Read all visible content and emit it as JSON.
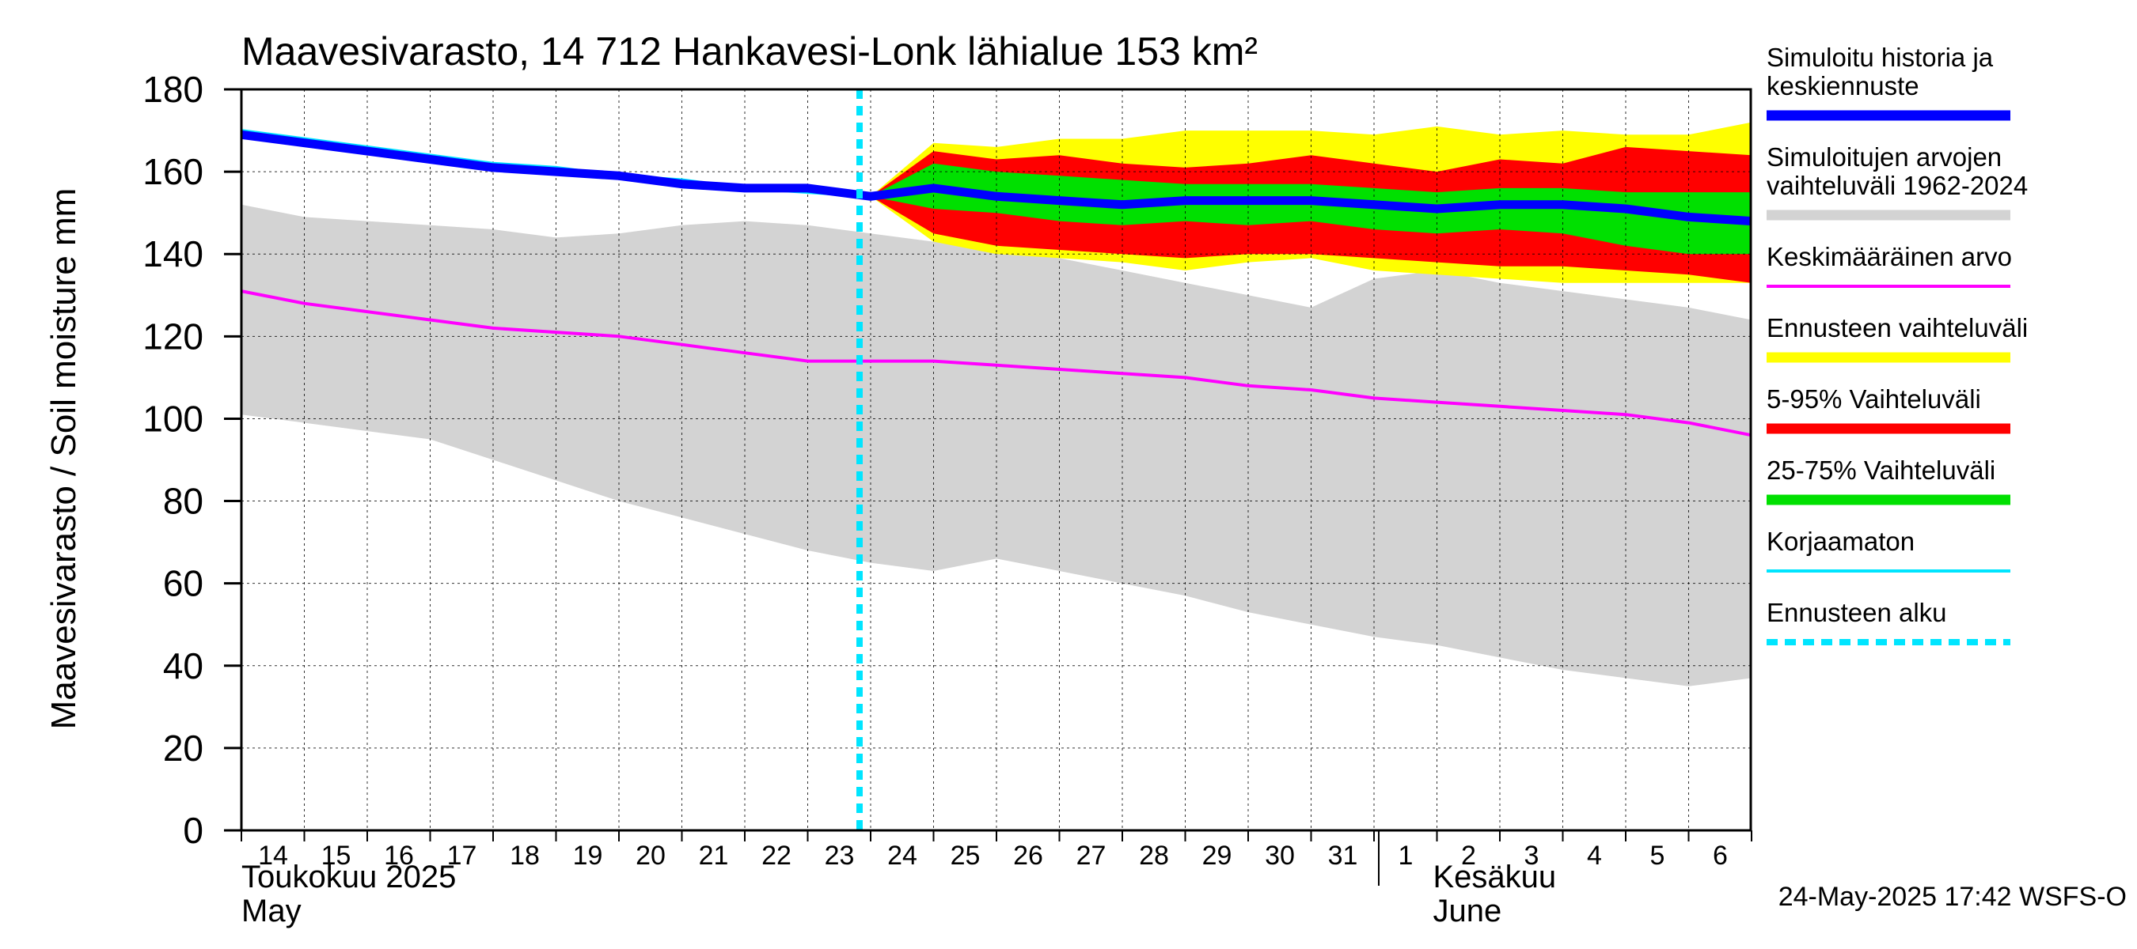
{
  "chart_data": {
    "type": "area",
    "title": "Maavesivarasto, 14 712 Hankavesi-Lonk lähialue 153 km²",
    "ylabel": "Maavesivarasto / Soil moisture   mm",
    "ylim": [
      0,
      180
    ],
    "yticks": [
      0,
      20,
      40,
      60,
      80,
      100,
      120,
      140,
      160,
      180
    ],
    "x_dates": [
      "2025-05-14",
      "2025-05-15",
      "2025-05-16",
      "2025-05-17",
      "2025-05-18",
      "2025-05-19",
      "2025-05-20",
      "2025-05-21",
      "2025-05-22",
      "2025-05-23",
      "2025-05-24",
      "2025-05-25",
      "2025-05-26",
      "2025-05-27",
      "2025-05-28",
      "2025-05-29",
      "2025-05-30",
      "2025-05-31",
      "2025-06-01",
      "2025-06-02",
      "2025-06-03",
      "2025-06-04",
      "2025-06-05",
      "2025-06-06",
      "2025-06-07"
    ],
    "x_tick_labels": [
      "14",
      "15",
      "16",
      "17",
      "18",
      "19",
      "20",
      "21",
      "22",
      "23",
      "24",
      "25",
      "26",
      "27",
      "28",
      "29",
      "30",
      "31",
      "1",
      "2",
      "3",
      "4",
      "5",
      "6"
    ],
    "month_labels": [
      {
        "line1": "Toukokuu  2025",
        "line2": "May",
        "date": "2025-05-14"
      },
      {
        "line1": "Kesäkuu",
        "line2": "June",
        "date": "2025-06-02"
      }
    ],
    "forecast_start": "2025-05-24",
    "grid": true,
    "legend_position": "right",
    "timestamp": "24-May-2025 17:42 WSFS-O",
    "series": [
      {
        "name": "Simuloitujen arvojen vaihteluväli 1962-2024",
        "kind": "band",
        "color": "#d3d3d3",
        "x": [
          "2025-05-14",
          "2025-05-15",
          "2025-05-16",
          "2025-05-17",
          "2025-05-18",
          "2025-05-19",
          "2025-05-20",
          "2025-05-21",
          "2025-05-22",
          "2025-05-23",
          "2025-05-24",
          "2025-05-25",
          "2025-05-26",
          "2025-05-27",
          "2025-05-28",
          "2025-05-29",
          "2025-05-30",
          "2025-05-31",
          "2025-06-01",
          "2025-06-02",
          "2025-06-03",
          "2025-06-04",
          "2025-06-05",
          "2025-06-06",
          "2025-06-07"
        ],
        "upper": [
          152,
          149,
          148,
          147,
          146,
          144,
          145,
          147,
          148,
          147,
          145,
          143,
          141,
          139,
          136,
          133,
          130,
          127,
          134,
          136,
          133,
          131,
          129,
          127,
          124
        ],
        "lower": [
          101,
          99,
          97,
          95,
          90,
          85,
          80,
          76,
          72,
          68,
          65,
          63,
          66,
          63,
          60,
          57,
          53,
          50,
          47,
          45,
          42,
          39,
          37,
          35,
          37
        ]
      },
      {
        "name": "Ennusteen vaihteluväli",
        "kind": "band",
        "color": "#ffff00",
        "x": [
          "2025-05-24",
          "2025-05-25",
          "2025-05-26",
          "2025-05-27",
          "2025-05-28",
          "2025-05-29",
          "2025-05-30",
          "2025-05-31",
          "2025-06-01",
          "2025-06-02",
          "2025-06-03",
          "2025-06-04",
          "2025-06-05",
          "2025-06-06",
          "2025-06-07"
        ],
        "upper": [
          154,
          167,
          166,
          168,
          168,
          170,
          170,
          170,
          169,
          171,
          169,
          170,
          169,
          169,
          172
        ],
        "lower": [
          154,
          143,
          140,
          139,
          138,
          136,
          138,
          139,
          136,
          135,
          134,
          133,
          133,
          133,
          133
        ]
      },
      {
        "name": "5-95% Vaihteluväli",
        "kind": "band",
        "color": "#ff0000",
        "x": [
          "2025-05-24",
          "2025-05-25",
          "2025-05-26",
          "2025-05-27",
          "2025-05-28",
          "2025-05-29",
          "2025-05-30",
          "2025-05-31",
          "2025-06-01",
          "2025-06-02",
          "2025-06-03",
          "2025-06-04",
          "2025-06-05",
          "2025-06-06",
          "2025-06-07"
        ],
        "upper": [
          154,
          165,
          163,
          164,
          162,
          161,
          162,
          164,
          162,
          160,
          163,
          162,
          166,
          165,
          164
        ],
        "lower": [
          154,
          145,
          142,
          141,
          140,
          139,
          140,
          140,
          139,
          138,
          137,
          137,
          136,
          135,
          133
        ]
      },
      {
        "name": "25-75% Vaihteluväli",
        "kind": "band",
        "color": "#00e000",
        "x": [
          "2025-05-24",
          "2025-05-25",
          "2025-05-26",
          "2025-05-27",
          "2025-05-28",
          "2025-05-29",
          "2025-05-30",
          "2025-05-31",
          "2025-06-01",
          "2025-06-02",
          "2025-06-03",
          "2025-06-04",
          "2025-06-05",
          "2025-06-06",
          "2025-06-07"
        ],
        "upper": [
          154,
          162,
          160,
          159,
          158,
          157,
          157,
          157,
          156,
          155,
          156,
          156,
          155,
          155,
          155
        ],
        "lower": [
          154,
          151,
          150,
          148,
          147,
          148,
          147,
          148,
          146,
          145,
          146,
          145,
          142,
          140,
          140
        ]
      },
      {
        "name": "Keskimääräinen arvo",
        "kind": "line",
        "color": "#ff00ff",
        "x": [
          "2025-05-14",
          "2025-05-15",
          "2025-05-16",
          "2025-05-17",
          "2025-05-18",
          "2025-05-19",
          "2025-05-20",
          "2025-05-21",
          "2025-05-22",
          "2025-05-23",
          "2025-05-24",
          "2025-05-25",
          "2025-05-26",
          "2025-05-27",
          "2025-05-28",
          "2025-05-29",
          "2025-05-30",
          "2025-05-31",
          "2025-06-01",
          "2025-06-02",
          "2025-06-03",
          "2025-06-04",
          "2025-06-05",
          "2025-06-06",
          "2025-06-07"
        ],
        "values": [
          131,
          128,
          126,
          124,
          122,
          121,
          120,
          118,
          116,
          114,
          114,
          114,
          113,
          112,
          111,
          110,
          108,
          107,
          105,
          104,
          103,
          102,
          101,
          99,
          96
        ]
      },
      {
        "name": "Korjaamaton",
        "kind": "line",
        "color": "#00e5ff",
        "x": [
          "2025-05-14",
          "2025-05-15",
          "2025-05-16",
          "2025-05-17",
          "2025-05-18",
          "2025-05-19",
          "2025-05-20",
          "2025-05-21",
          "2025-05-22",
          "2025-05-23",
          "2025-05-24"
        ],
        "values": [
          170,
          168,
          166,
          164,
          162,
          161,
          159,
          158,
          156,
          155,
          154
        ]
      },
      {
        "name": "Simuloitu historia ja keskiennuste",
        "kind": "line",
        "color": "#0000ff",
        "x": [
          "2025-05-14",
          "2025-05-15",
          "2025-05-16",
          "2025-05-17",
          "2025-05-18",
          "2025-05-19",
          "2025-05-20",
          "2025-05-21",
          "2025-05-22",
          "2025-05-23",
          "2025-05-24",
          "2025-05-25",
          "2025-05-26",
          "2025-05-27",
          "2025-05-28",
          "2025-05-29",
          "2025-05-30",
          "2025-05-31",
          "2025-06-01",
          "2025-06-02",
          "2025-06-03",
          "2025-06-04",
          "2025-06-05",
          "2025-06-06",
          "2025-06-07"
        ],
        "values": [
          169,
          167,
          165,
          163,
          161,
          160,
          159,
          157,
          156,
          156,
          154,
          156,
          154,
          153,
          152,
          153,
          153,
          153,
          152,
          151,
          152,
          152,
          151,
          149,
          148
        ]
      }
    ],
    "legend": [
      {
        "label_lines": [
          "Simuloitu historia ja",
          "keskiennuste"
        ],
        "color": "#0000ff",
        "style": "thick"
      },
      {
        "label_lines": [
          "Simuloitujen arvojen",
          "vaihteluväli 1962-2024"
        ],
        "color": "#d3d3d3",
        "style": "thick"
      },
      {
        "label_lines": [
          "Keskimääräinen arvo"
        ],
        "color": "#ff00ff",
        "style": "thin"
      },
      {
        "label_lines": [
          "Ennusteen vaihteluväli"
        ],
        "color": "#ffff00",
        "style": "thick"
      },
      {
        "label_lines": [
          "5-95% Vaihteluväli"
        ],
        "color": "#ff0000",
        "style": "thick"
      },
      {
        "label_lines": [
          "25-75% Vaihteluväli"
        ],
        "color": "#00e000",
        "style": "thick"
      },
      {
        "label_lines": [
          "Korjaamaton"
        ],
        "color": "#00e5ff",
        "style": "thin"
      },
      {
        "label_lines": [
          "Ennusteen alku"
        ],
        "color": "#00e5ff",
        "style": "dashed"
      }
    ]
  }
}
